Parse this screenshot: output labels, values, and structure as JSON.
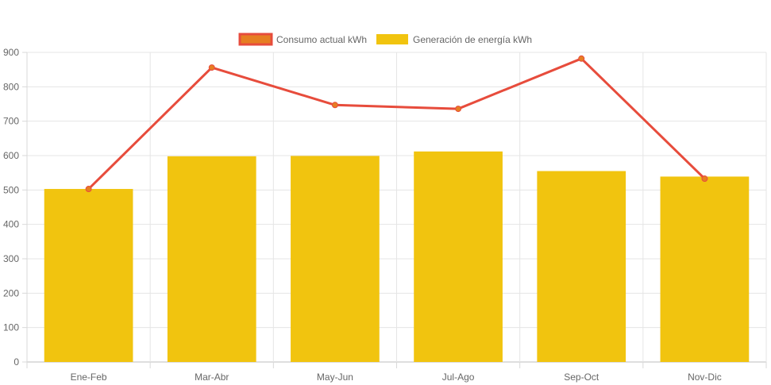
{
  "chart_data": {
    "type": "bar",
    "categories": [
      "Ene-Feb",
      "Mar-Abr",
      "May-Jun",
      "Jul-Ago",
      "Sep-Oct",
      "Nov-Dic"
    ],
    "series": [
      {
        "name": "Consumo actual kWh",
        "type": "line",
        "values": [
          503,
          856,
          747,
          736,
          882,
          533
        ],
        "color": "#e74c3c",
        "fill": "#e67e22"
      },
      {
        "name": "Generación de energía kWh",
        "type": "bar",
        "values": [
          503,
          598,
          599,
          612,
          555,
          539
        ],
        "color": "#f1c40f"
      }
    ],
    "ylim": [
      0,
      900
    ],
    "yticks": [
      0,
      100,
      200,
      300,
      400,
      500,
      600,
      700,
      800,
      900
    ],
    "grid": true,
    "legend": "top-center",
    "xlabel": "",
    "ylabel": "",
    "title": ""
  }
}
